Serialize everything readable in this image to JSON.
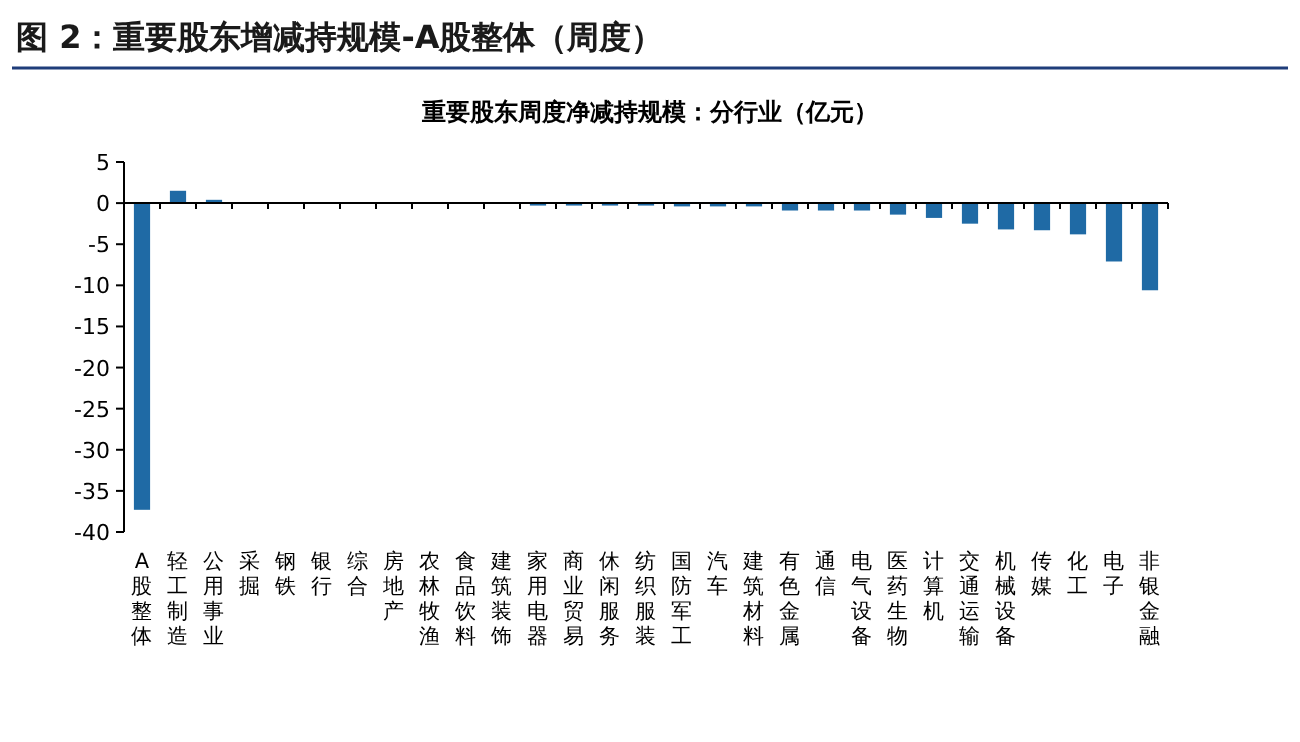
{
  "chart_data": {
    "type": "bar",
    "title": "图 2：重要股东增减持规模-A股整体（周度）",
    "subtitle": "重要股东周度净减持规模：分行业（亿元）",
    "categories": [
      "A股整体",
      "轻工制造",
      "公用事业",
      "采掘",
      "钢铁",
      "银行",
      "综合",
      "房地产",
      "农林牧渔",
      "食品饮料",
      "建筑装饰",
      "家用电器",
      "商业贸易",
      "休闲服务",
      "纺织服装",
      "国防军工",
      "汽车",
      "建筑材料",
      "有色金属",
      "通信",
      "电气设备",
      "医药生物",
      "计算机",
      "交通运输",
      "机械设备",
      "传媒",
      "化工",
      "电子",
      "非银金融"
    ],
    "values": [
      -37.3,
      1.5,
      0.4,
      0,
      0,
      0,
      0,
      0,
      0,
      0,
      0,
      -0.3,
      -0.3,
      -0.3,
      -0.3,
      -0.4,
      -0.4,
      -0.4,
      -0.9,
      -0.9,
      -0.9,
      -1.4,
      -1.8,
      -2.5,
      -3.2,
      -3.3,
      -3.8,
      -7.1,
      -10.6
    ],
    "color": "#1f6aa5",
    "ylim": [
      -40,
      5
    ],
    "yticks": [
      5,
      0,
      -5,
      -10,
      -15,
      -20,
      -25,
      -30,
      -35,
      -40
    ]
  }
}
